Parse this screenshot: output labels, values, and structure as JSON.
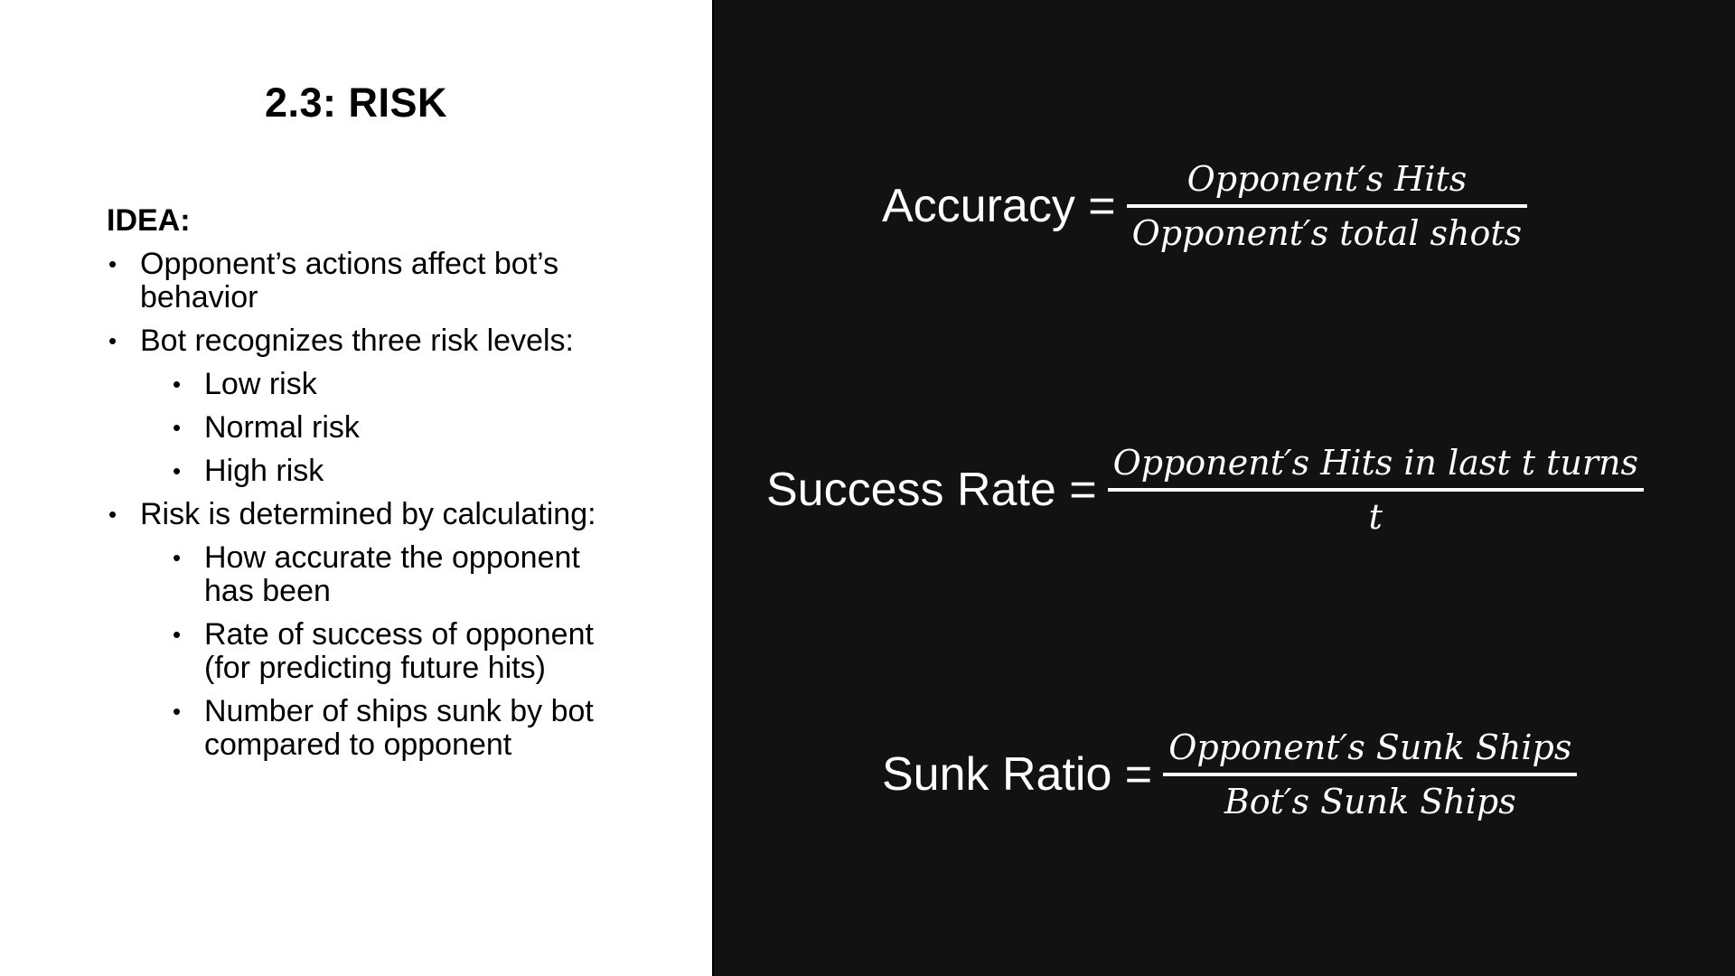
{
  "slide": {
    "title": "2.3: RISK",
    "idea_label": "IDEA:",
    "bullets": [
      {
        "text": "Opponent’s actions affect bot’s behavior"
      },
      {
        "text": "Bot recognizes three risk levels:",
        "sub": [
          "Low risk",
          "Normal risk",
          "High risk"
        ]
      },
      {
        "text": "Risk is determined by calculating:",
        "sub": [
          "How accurate the opponent has been",
          "Rate of success of opponent (for predicting future hits)",
          "Number of ships sunk by bot compared to opponent"
        ]
      }
    ]
  },
  "formulas": [
    {
      "lhs": "Accuracy =",
      "numerator": "Opponent′s Hits",
      "denominator": "Opponent′s total shots"
    },
    {
      "lhs": "Success Rate =",
      "numerator": "Opponent′s Hits in last t turns",
      "denominator": "t"
    },
    {
      "lhs": "Sunk Ratio =",
      "numerator": "Opponent′s Sunk Ships",
      "denominator": "Bot′s Sunk Ships"
    }
  ],
  "bullet_glyph": "•",
  "colors": {
    "left_bg": "#ffffff",
    "right_bg": "#121212",
    "text_dark": "#000000",
    "text_light": "#ffffff"
  }
}
